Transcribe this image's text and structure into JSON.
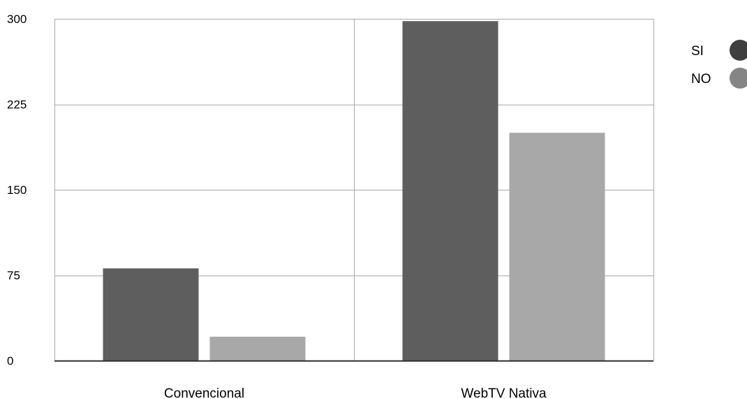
{
  "chart_data": {
    "type": "bar",
    "categories": [
      "Convencional",
      "WebTV Nativa"
    ],
    "series": [
      {
        "name": "SI",
        "values": [
          81,
          298
        ],
        "color": "#5e5e5e"
      },
      {
        "name": "NO",
        "values": [
          21,
          200
        ],
        "color": "#a8a8a8"
      }
    ],
    "ylim": [
      0,
      300
    ],
    "yticks": [
      0,
      75,
      150,
      225,
      300
    ],
    "ytick_labels": [
      "0",
      "75",
      "150",
      "225",
      "300"
    ],
    "grid": true,
    "legend_position": "right",
    "legend": [
      {
        "label": "SI",
        "color": "#3f3f3f"
      },
      {
        "label": "NO",
        "color": "#858585"
      }
    ],
    "title": "",
    "xlabel": "",
    "ylabel": ""
  }
}
